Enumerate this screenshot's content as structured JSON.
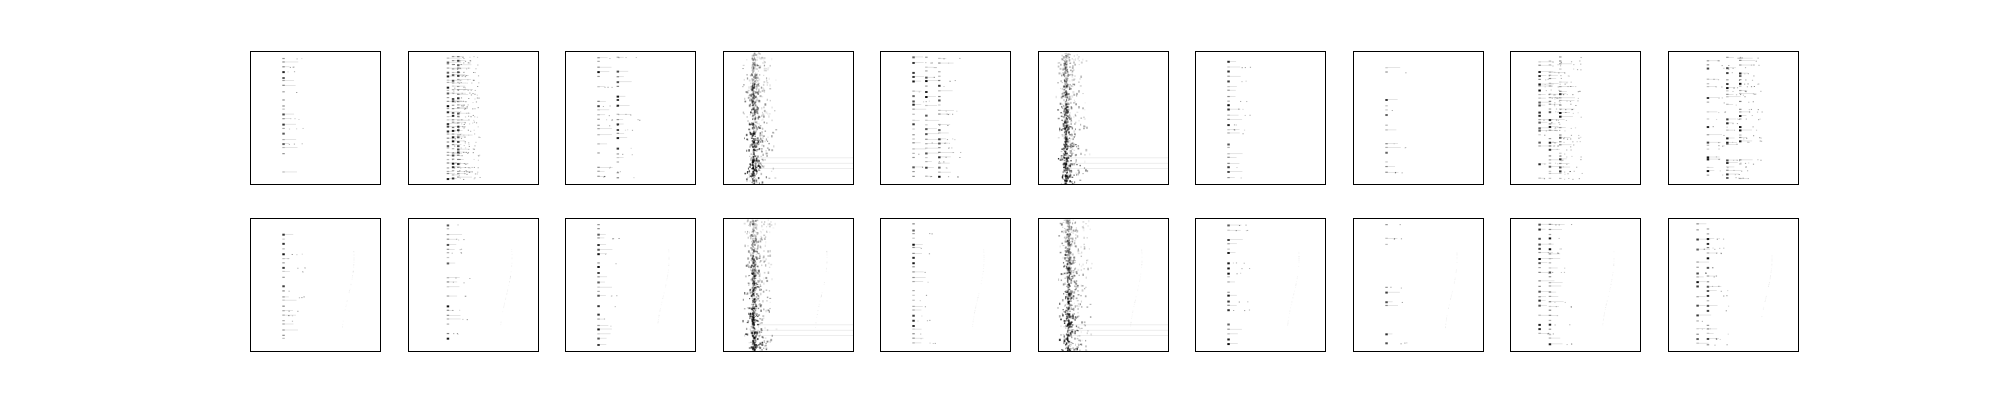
{
  "figure": {
    "rows": 2,
    "cols": 10,
    "background": "#ffffff",
    "frame_color": "#000000",
    "ink_color": "#000000"
  },
  "panels": [
    {
      "row": 0,
      "col": 0,
      "pattern": "sparse",
      "band": [
        0.25
      ],
      "density": 0.9
    },
    {
      "row": 0,
      "col": 1,
      "pattern": "multi-column",
      "band": [
        0.3,
        0.34,
        0.38
      ],
      "density": 1.0
    },
    {
      "row": 0,
      "col": 2,
      "pattern": "sparse",
      "band": [
        0.25,
        0.4
      ],
      "density": 0.7
    },
    {
      "row": 0,
      "col": 3,
      "pattern": "noisy-vertical",
      "band": [
        0.22
      ],
      "density": 1.0
    },
    {
      "row": 0,
      "col": 4,
      "pattern": "sparse",
      "band": [
        0.25,
        0.35,
        0.45
      ],
      "density": 0.9
    },
    {
      "row": 0,
      "col": 5,
      "pattern": "noisy-vertical",
      "band": [
        0.2
      ],
      "density": 1.0
    },
    {
      "row": 0,
      "col": 6,
      "pattern": "sparse",
      "band": [
        0.25
      ],
      "density": 0.8
    },
    {
      "row": 0,
      "col": 7,
      "pattern": "sparse",
      "band": [
        0.25
      ],
      "density": 0.5
    },
    {
      "row": 0,
      "col": 8,
      "pattern": "multi-column",
      "band": [
        0.22,
        0.3,
        0.38
      ],
      "density": 0.8
    },
    {
      "row": 0,
      "col": 9,
      "pattern": "multi-column",
      "band": [
        0.3,
        0.45,
        0.55
      ],
      "density": 0.7
    },
    {
      "row": 1,
      "col": 0,
      "pattern": "sparse",
      "band": [
        0.25
      ],
      "density": 0.9
    },
    {
      "row": 1,
      "col": 1,
      "pattern": "sparse",
      "band": [
        0.3
      ],
      "density": 0.8
    },
    {
      "row": 1,
      "col": 2,
      "pattern": "sparse",
      "band": [
        0.25
      ],
      "density": 0.8
    },
    {
      "row": 1,
      "col": 3,
      "pattern": "noisy-vertical",
      "band": [
        0.22
      ],
      "density": 1.0
    },
    {
      "row": 1,
      "col": 4,
      "pattern": "sparse",
      "band": [
        0.25
      ],
      "density": 0.9
    },
    {
      "row": 1,
      "col": 5,
      "pattern": "noisy-vertical",
      "band": [
        0.22
      ],
      "density": 1.0
    },
    {
      "row": 1,
      "col": 6,
      "pattern": "sparse",
      "band": [
        0.25
      ],
      "density": 0.8
    },
    {
      "row": 1,
      "col": 7,
      "pattern": "sparse",
      "band": [
        0.25
      ],
      "density": 0.5
    },
    {
      "row": 1,
      "col": 8,
      "pattern": "sparse",
      "band": [
        0.22,
        0.3
      ],
      "density": 0.9
    },
    {
      "row": 1,
      "col": 9,
      "pattern": "sparse",
      "band": [
        0.22,
        0.3
      ],
      "density": 0.7
    }
  ]
}
